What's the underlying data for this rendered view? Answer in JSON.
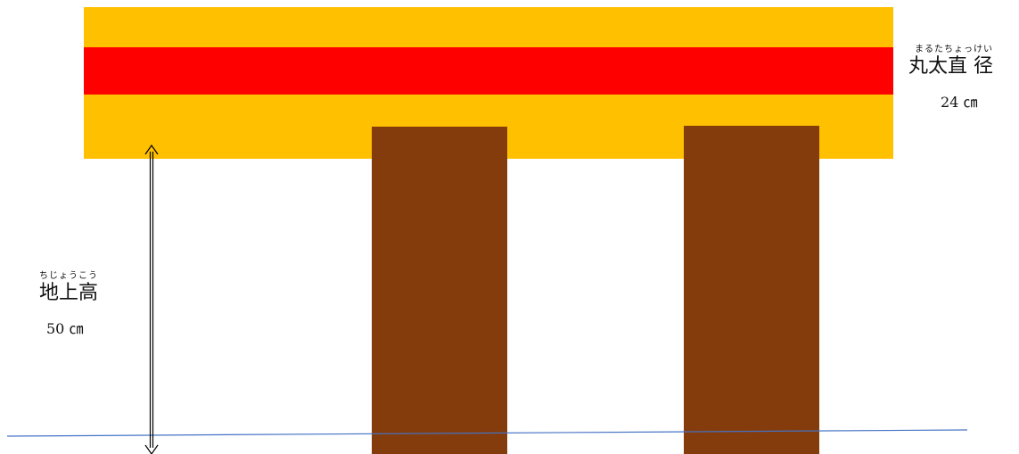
{
  "diagram": {
    "log": {
      "beam_color": "#FFC000",
      "core_band_color": "#FF0000"
    },
    "posts": {
      "color": "#843C0C"
    },
    "ground_line_color": "#4472C4",
    "height_arrow_color": "#000000",
    "diameter_label": {
      "ruby": "まるたちょっけい",
      "kanji": "丸太直 径",
      "value": "24 ㎝"
    },
    "height_label": {
      "ruby": "ちじょうこう",
      "kanji": "地上高",
      "value": "50 ㎝"
    }
  }
}
